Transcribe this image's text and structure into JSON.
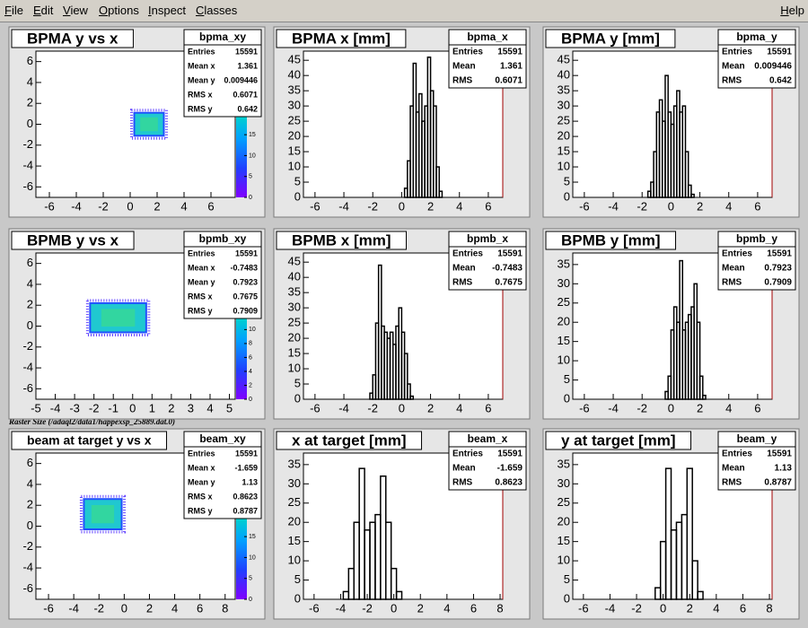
{
  "menu": {
    "items": [
      "File",
      "Edit",
      "View",
      "Options",
      "Inspect",
      "Classes"
    ],
    "help": "Help"
  },
  "caption": "Raster Size (/adaql2/data1/happexsp_25889.dat.0)",
  "panels": [
    {
      "type": "hist2d",
      "title": "BPMA y vs x",
      "stats": {
        "name": "bpma_xy",
        "rows": [
          [
            "Entries",
            15591
          ],
          [
            "Mean x",
            1.361
          ],
          [
            "Mean y",
            0.009446
          ],
          [
            "RMS x",
            0.6071
          ],
          [
            "RMS y",
            0.642
          ]
        ]
      },
      "xlim": [
        -7,
        7.8
      ],
      "ylim": [
        -7,
        7
      ],
      "xticks": [
        -6,
        -4,
        -2,
        0,
        2,
        4,
        6
      ],
      "yticks": [
        -6,
        -4,
        -2,
        0,
        2,
        4,
        6
      ],
      "cluster": {
        "x": [
          0.3,
          2.5
        ],
        "y": [
          -1.1,
          1.1
        ]
      },
      "zlim": [
        0,
        35
      ],
      "palette_ticks": [
        0,
        5,
        10,
        15
      ]
    },
    {
      "type": "hist",
      "title": "BPMA x [mm]",
      "stats": {
        "name": "bpma_x",
        "rows": [
          [
            "Entries",
            15591
          ],
          [
            "Mean",
            1.361
          ],
          [
            "RMS",
            0.6071
          ]
        ]
      },
      "xlim": [
        -6.8,
        7
      ],
      "ylim": [
        0,
        48
      ],
      "xticks": [
        -6,
        -4,
        -2,
        0,
        2,
        4,
        6
      ],
      "yticks": [
        0,
        5,
        10,
        15,
        20,
        25,
        30,
        35,
        40,
        45
      ],
      "bins": [
        0.2,
        0.4,
        0.6,
        0.8,
        1.0,
        1.2,
        1.4,
        1.6,
        1.8,
        2.0,
        2.2,
        2.4,
        2.6,
        2.8
      ],
      "values": [
        3,
        12,
        30,
        44,
        28,
        34,
        25,
        30,
        46,
        35,
        30,
        10,
        2
      ]
    },
    {
      "type": "hist",
      "title": "BPMA y [mm]",
      "stats": {
        "name": "bpma_y",
        "rows": [
          [
            "Entries",
            15591
          ],
          [
            "Mean",
            0.009446
          ],
          [
            "RMS",
            0.642
          ]
        ]
      },
      "xlim": [
        -6.8,
        7
      ],
      "ylim": [
        0,
        48
      ],
      "xticks": [
        -6,
        -4,
        -2,
        0,
        2,
        4,
        6
      ],
      "yticks": [
        0,
        5,
        10,
        15,
        20,
        25,
        30,
        35,
        40,
        45
      ],
      "bins": [
        -1.6,
        -1.4,
        -1.2,
        -1.0,
        -0.8,
        -0.6,
        -0.4,
        -0.2,
        0,
        0.2,
        0.4,
        0.6,
        0.8,
        1.0,
        1.2,
        1.4,
        1.6
      ],
      "values": [
        2,
        5,
        15,
        28,
        32,
        25,
        40,
        28,
        24,
        30,
        35,
        28,
        30,
        15,
        4,
        1
      ]
    },
    {
      "type": "hist2d",
      "title": "BPMB y vs x",
      "stats": {
        "name": "bpmb_xy",
        "rows": [
          [
            "Entries",
            15591
          ],
          [
            "Mean x",
            -0.7483
          ],
          [
            "Mean y",
            0.7923
          ],
          [
            "RMS x",
            0.7675
          ],
          [
            "RMS y",
            0.7909
          ]
        ]
      },
      "xlim": [
        -5,
        5.3
      ],
      "ylim": [
        -7,
        7
      ],
      "xticks": [
        -5,
        -4,
        -3,
        -2,
        -1,
        0,
        1,
        2,
        3,
        4,
        5
      ],
      "yticks": [
        -6,
        -4,
        -2,
        0,
        2,
        4,
        6
      ],
      "cluster": {
        "x": [
          -2.2,
          0.7
        ],
        "y": [
          -0.6,
          2.2
        ]
      },
      "zlim": [
        0,
        21
      ],
      "palette_ticks": [
        0,
        2,
        4,
        6,
        8,
        10,
        12
      ]
    },
    {
      "type": "hist",
      "title": "BPMB x [mm]",
      "stats": {
        "name": "bpmb_x",
        "rows": [
          [
            "Entries",
            15591
          ],
          [
            "Mean",
            -0.7483
          ],
          [
            "RMS",
            0.7675
          ]
        ]
      },
      "xlim": [
        -6.8,
        7
      ],
      "ylim": [
        0,
        48
      ],
      "xticks": [
        -6,
        -4,
        -2,
        0,
        2,
        4,
        6
      ],
      "yticks": [
        0,
        5,
        10,
        15,
        20,
        25,
        30,
        35,
        40,
        45
      ],
      "bins": [
        -2.2,
        -2.0,
        -1.8,
        -1.6,
        -1.4,
        -1.2,
        -1.0,
        -0.8,
        -0.6,
        -0.4,
        -0.2,
        0,
        0.2,
        0.4,
        0.6,
        0.8
      ],
      "values": [
        2,
        8,
        25,
        44,
        24,
        22,
        20,
        22,
        18,
        24,
        30,
        22,
        15,
        5,
        1
      ]
    },
    {
      "type": "hist",
      "title": "BPMB y [mm]",
      "stats": {
        "name": "bpmb_y",
        "rows": [
          [
            "Entries",
            15591
          ],
          [
            "Mean",
            0.7923
          ],
          [
            "RMS",
            0.7909
          ]
        ]
      },
      "xlim": [
        -6.8,
        7
      ],
      "ylim": [
        0,
        38
      ],
      "xticks": [
        -6,
        -4,
        -2,
        0,
        2,
        4,
        6
      ],
      "yticks": [
        0,
        5,
        10,
        15,
        20,
        25,
        30,
        35
      ],
      "bins": [
        -0.4,
        -0.2,
        0,
        0.2,
        0.4,
        0.6,
        0.8,
        1.0,
        1.2,
        1.4,
        1.6,
        1.8,
        2.0,
        2.2,
        2.4
      ],
      "values": [
        2,
        6,
        18,
        24,
        20,
        36,
        18,
        20,
        22,
        24,
        30,
        20,
        6,
        1
      ]
    },
    {
      "type": "hist2d",
      "title": "beam at target y vs x",
      "stats": {
        "name": "beam_xy",
        "rows": [
          [
            "Entries",
            15591
          ],
          [
            "Mean x",
            -1.659
          ],
          [
            "Mean y",
            1.13
          ],
          [
            "RMS x",
            0.8623
          ],
          [
            "RMS y",
            0.8787
          ]
        ]
      },
      "xlim": [
        -7,
        8.8
      ],
      "ylim": [
        -7,
        7
      ],
      "xticks": [
        -6,
        -4,
        -2,
        0,
        2,
        4,
        6,
        8
      ],
      "yticks": [
        -6,
        -4,
        -2,
        0,
        2,
        4,
        6
      ],
      "cluster": {
        "x": [
          -3.2,
          -0.2
        ],
        "y": [
          -0.3,
          2.6
        ]
      },
      "zlim": [
        0,
        35
      ],
      "palette_ticks": [
        0,
        5,
        10,
        15
      ]
    },
    {
      "type": "hist",
      "title": "x at target [mm]",
      "stats": {
        "name": "beam_x",
        "rows": [
          [
            "Entries",
            15591
          ],
          [
            "Mean",
            -1.659
          ],
          [
            "RMS",
            0.8623
          ]
        ]
      },
      "xlim": [
        -6.8,
        8.2
      ],
      "ylim": [
        0,
        38
      ],
      "xticks": [
        -6,
        -4,
        -2,
        0,
        2,
        4,
        6,
        8
      ],
      "yticks": [
        0,
        5,
        10,
        15,
        20,
        25,
        30,
        35
      ],
      "bins": [
        -3.8,
        -3.4,
        -3.0,
        -2.6,
        -2.2,
        -1.8,
        -1.4,
        -1.0,
        -0.6,
        -0.2,
        0.2,
        0.6
      ],
      "values": [
        2,
        8,
        20,
        34,
        18,
        20,
        22,
        32,
        20,
        8,
        2
      ]
    },
    {
      "type": "hist",
      "title": "y at target [mm]",
      "stats": {
        "name": "beam_y",
        "rows": [
          [
            "Entries",
            15591
          ],
          [
            "Mean",
            1.13
          ],
          [
            "RMS",
            0.8787
          ]
        ]
      },
      "xlim": [
        -6.8,
        8.2
      ],
      "ylim": [
        0,
        38
      ],
      "xticks": [
        -6,
        -4,
        -2,
        0,
        2,
        4,
        6,
        8
      ],
      "yticks": [
        0,
        5,
        10,
        15,
        20,
        25,
        30,
        35
      ],
      "bins": [
        -0.6,
        -0.2,
        0.2,
        0.6,
        1.0,
        1.4,
        1.8,
        2.2,
        2.6,
        3.0
      ],
      "values": [
        3,
        15,
        34,
        18,
        20,
        22,
        34,
        10,
        2
      ]
    }
  ]
}
